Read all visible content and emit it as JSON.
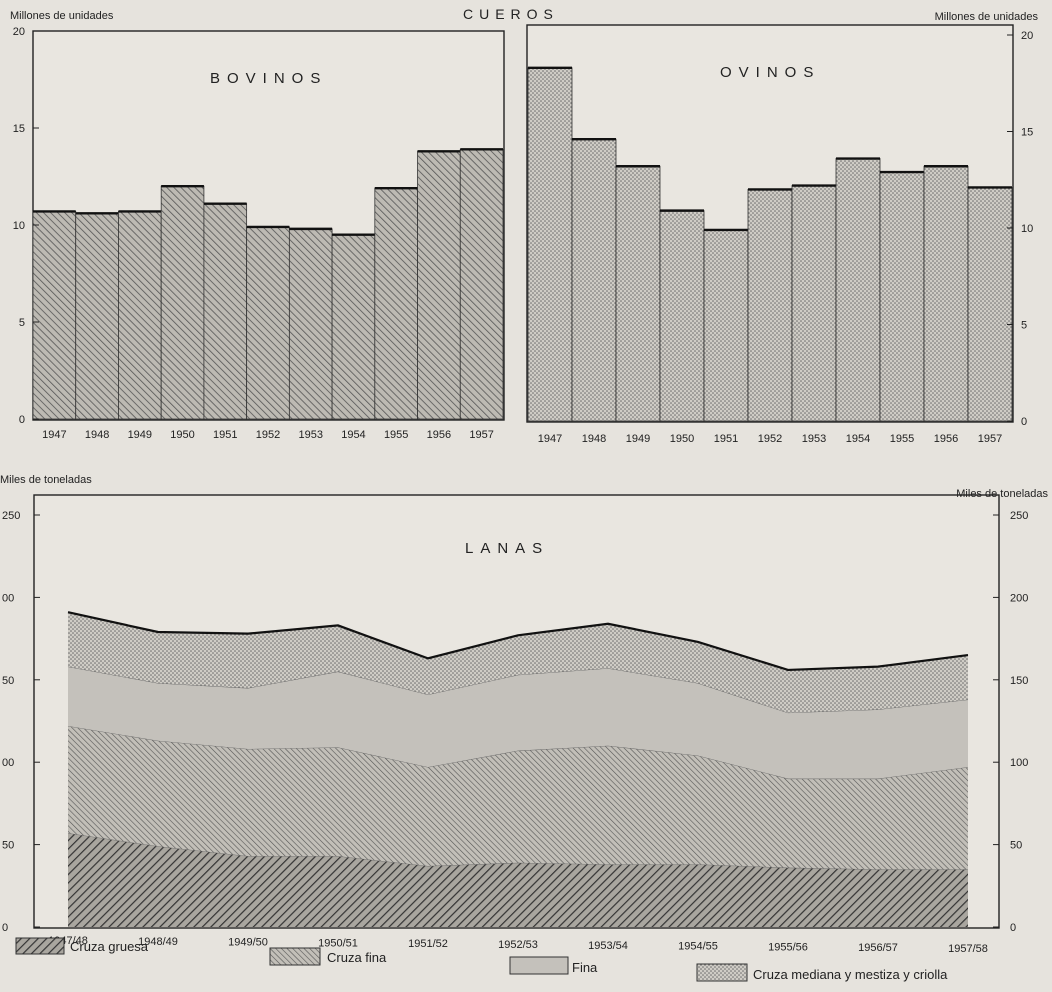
{
  "main_title": "CUEROS",
  "chart_data": [
    {
      "type": "bar",
      "title": "BOVINOS",
      "ylabel": "Millones de unidades",
      "categories": [
        "1947",
        "1948",
        "1949",
        "1950",
        "1951",
        "1952",
        "1953",
        "1954",
        "1955",
        "1956",
        "1957"
      ],
      "values": [
        10.7,
        10.6,
        10.7,
        12.0,
        11.1,
        9.9,
        9.8,
        9.5,
        11.9,
        13.8,
        13.9
      ],
      "ylim": [
        0,
        20
      ],
      "yticks": [
        "0",
        "5",
        "10",
        "15",
        "20"
      ],
      "y_axis": "left"
    },
    {
      "type": "bar",
      "title": "OVINOS",
      "ylabel": "Millones de unidades",
      "categories": [
        "1947",
        "1948",
        "1949",
        "1950",
        "1951",
        "1952",
        "1953",
        "1954",
        "1955",
        "1956",
        "1957"
      ],
      "values": [
        18.3,
        14.6,
        13.2,
        10.9,
        9.9,
        12.0,
        12.2,
        13.6,
        12.9,
        13.2,
        12.1
      ],
      "ylim": [
        0,
        20
      ],
      "yticks": [
        "0",
        "5",
        "10",
        "15",
        "20"
      ],
      "y_axis": "right"
    },
    {
      "type": "area",
      "stacked": true,
      "title": "LANAS",
      "ylabel": "Miles de toneladas",
      "categories": [
        "1947/48",
        "1948/49",
        "1949/50",
        "1950/51",
        "1951/52",
        "1952/53",
        "1953/54",
        "1954/55",
        "1955/56",
        "1956/57",
        "1957/58"
      ],
      "ylim": [
        0,
        250
      ],
      "yticks": [
        "0",
        "50",
        "100",
        "150",
        "200",
        "250"
      ],
      "yticks_left": [
        "0",
        "50",
        "00",
        "50",
        "00",
        "250"
      ],
      "series": [
        {
          "name": "Cruza gruesa",
          "values": [
            57,
            49,
            43,
            43,
            37,
            39,
            38,
            38,
            36,
            35,
            35
          ]
        },
        {
          "name": "Cruza fina",
          "values": [
            65,
            64,
            65,
            66,
            60,
            68,
            72,
            66,
            54,
            55,
            62
          ]
        },
        {
          "name": "Fina",
          "values": [
            36,
            35,
            37,
            46,
            44,
            46,
            47,
            44,
            40,
            42,
            41
          ]
        },
        {
          "name": "Cruza mediana y mestiza y criolla",
          "values": [
            33,
            31,
            33,
            28,
            22,
            24,
            27,
            25,
            26,
            26,
            27
          ]
        }
      ]
    }
  ]
}
